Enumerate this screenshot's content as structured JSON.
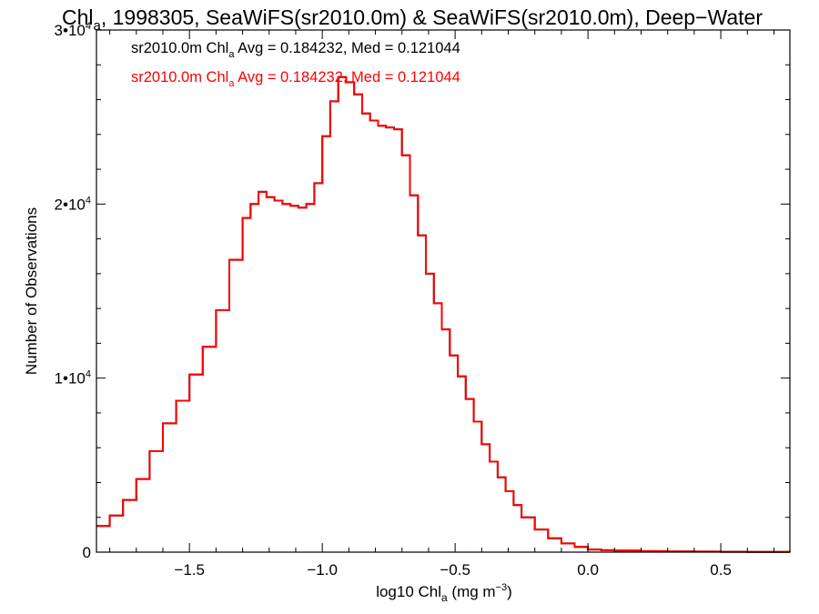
{
  "title": {
    "prefix": "Chl",
    "sub": "a",
    "rest": ", 1998305, SeaWiFS(sr2010.0m) & SeaWiFS(sr2010.0m), Deep−Water"
  },
  "colors": {
    "series1": "#000000",
    "series2": "#ff0000",
    "axes": "#000000"
  },
  "chart_data": {
    "type": "line",
    "style": "histogram-step",
    "xlabel": {
      "prefix": "log10 Chl",
      "sub": "a",
      "rest": " (mg m",
      "sup": "−3",
      "close": ")"
    },
    "ylabel": "Number of Observations",
    "xlim": [
      -1.85,
      0.76
    ],
    "ylim": [
      0,
      30000
    ],
    "x_ticks": [
      {
        "value": -1.5,
        "label": "−1.5"
      },
      {
        "value": -1.0,
        "label": "−1.0"
      },
      {
        "value": -0.5,
        "label": "−0.5"
      },
      {
        "value": 0.0,
        "label": "0.0"
      },
      {
        "value": 0.5,
        "label": "0.5"
      }
    ],
    "y_ticks": [
      {
        "value": 0,
        "label": "0",
        "exp": ""
      },
      {
        "value": 10000,
        "label": "1•10",
        "exp": "4"
      },
      {
        "value": 20000,
        "label": "2•10",
        "exp": "4"
      },
      {
        "value": 30000,
        "label": "3•10",
        "exp": "4"
      }
    ],
    "legend": [
      {
        "name_prefix": "sr2010.0m Chl",
        "name_sub": "a",
        "stats": " Avg = 0.184232, Med = 0.121044",
        "color": "#000000"
      },
      {
        "name_prefix": "sr2010.0m Chl",
        "name_sub": "a",
        "stats": " Avg = 0.184232, Med = 0.121044",
        "color": "#ff0000"
      }
    ],
    "legend_position": "top-left",
    "x": [
      -1.85,
      -1.8,
      -1.75,
      -1.7,
      -1.65,
      -1.6,
      -1.55,
      -1.5,
      -1.45,
      -1.4,
      -1.35,
      -1.3,
      -1.27,
      -1.24,
      -1.21,
      -1.18,
      -1.15,
      -1.12,
      -1.09,
      -1.06,
      -1.03,
      -1.0,
      -0.97,
      -0.94,
      -0.91,
      -0.88,
      -0.85,
      -0.82,
      -0.79,
      -0.76,
      -0.73,
      -0.7,
      -0.67,
      -0.64,
      -0.61,
      -0.58,
      -0.55,
      -0.52,
      -0.49,
      -0.46,
      -0.43,
      -0.4,
      -0.37,
      -0.34,
      -0.31,
      -0.28,
      -0.25,
      -0.2,
      -0.15,
      -0.1,
      -0.05,
      0.0,
      0.05,
      0.1,
      0.2,
      0.3,
      0.4,
      0.5,
      0.6,
      0.76
    ],
    "series": [
      {
        "values": [
          1500,
          2100,
          3000,
          4200,
          5800,
          7400,
          8700,
          10200,
          11800,
          13900,
          16800,
          19200,
          20000,
          20700,
          20400,
          20200,
          20000,
          19900,
          19800,
          20000,
          21200,
          23900,
          25900,
          27300,
          27000,
          26300,
          25200,
          24800,
          24500,
          24400,
          24300,
          22800,
          20500,
          18200,
          16000,
          14300,
          12800,
          11300,
          10100,
          8800,
          7500,
          6200,
          5200,
          4300,
          3500,
          2700,
          2000,
          1300,
          800,
          500,
          300,
          150,
          110,
          90,
          60,
          40,
          30,
          20,
          15,
          10
        ]
      },
      {
        "values": [
          1500,
          2100,
          3000,
          4200,
          5800,
          7400,
          8700,
          10200,
          11800,
          13900,
          16800,
          19200,
          20000,
          20700,
          20400,
          20200,
          20000,
          19900,
          19800,
          20000,
          21200,
          23900,
          25900,
          27300,
          27000,
          26300,
          25200,
          24800,
          24500,
          24400,
          24300,
          22800,
          20500,
          18200,
          16000,
          14300,
          12800,
          11300,
          10100,
          8800,
          7500,
          6200,
          5200,
          4300,
          3500,
          2700,
          2000,
          1300,
          800,
          500,
          300,
          150,
          110,
          90,
          60,
          40,
          30,
          20,
          15,
          10
        ]
      }
    ]
  }
}
